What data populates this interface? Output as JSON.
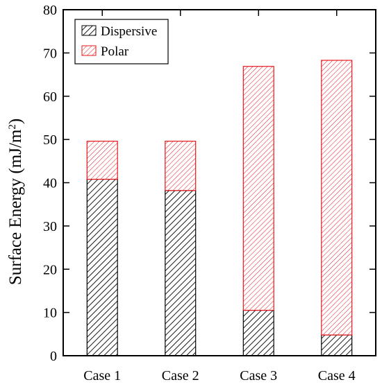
{
  "chart_data": {
    "type": "bar",
    "stacked": true,
    "categories": [
      "Case 1",
      "Case 2",
      "Case 3",
      "Case 4"
    ],
    "series": [
      {
        "name": "Dispersive",
        "values": [
          40.8,
          38.2,
          10.5,
          4.8
        ],
        "color": "#000000",
        "pattern": "hatch-dense"
      },
      {
        "name": "Polar",
        "values": [
          8.8,
          11.4,
          56.4,
          63.5
        ],
        "color": "#e8161b",
        "pattern": "hatch"
      }
    ],
    "totals": [
      49.6,
      49.6,
      66.9,
      68.3
    ],
    "ylabel": "Surface Energy (mJ/m²)",
    "ylabel_parts": {
      "main": "Surface Energy (mJ/m",
      "superscript": "2",
      "close": ")"
    },
    "xlabel": "",
    "ylim": [
      0,
      80
    ],
    "yticks": [
      "0",
      "10",
      "20",
      "30",
      "40",
      "50",
      "60",
      "70",
      "80"
    ],
    "grid": false,
    "legend_position": "top-left"
  }
}
